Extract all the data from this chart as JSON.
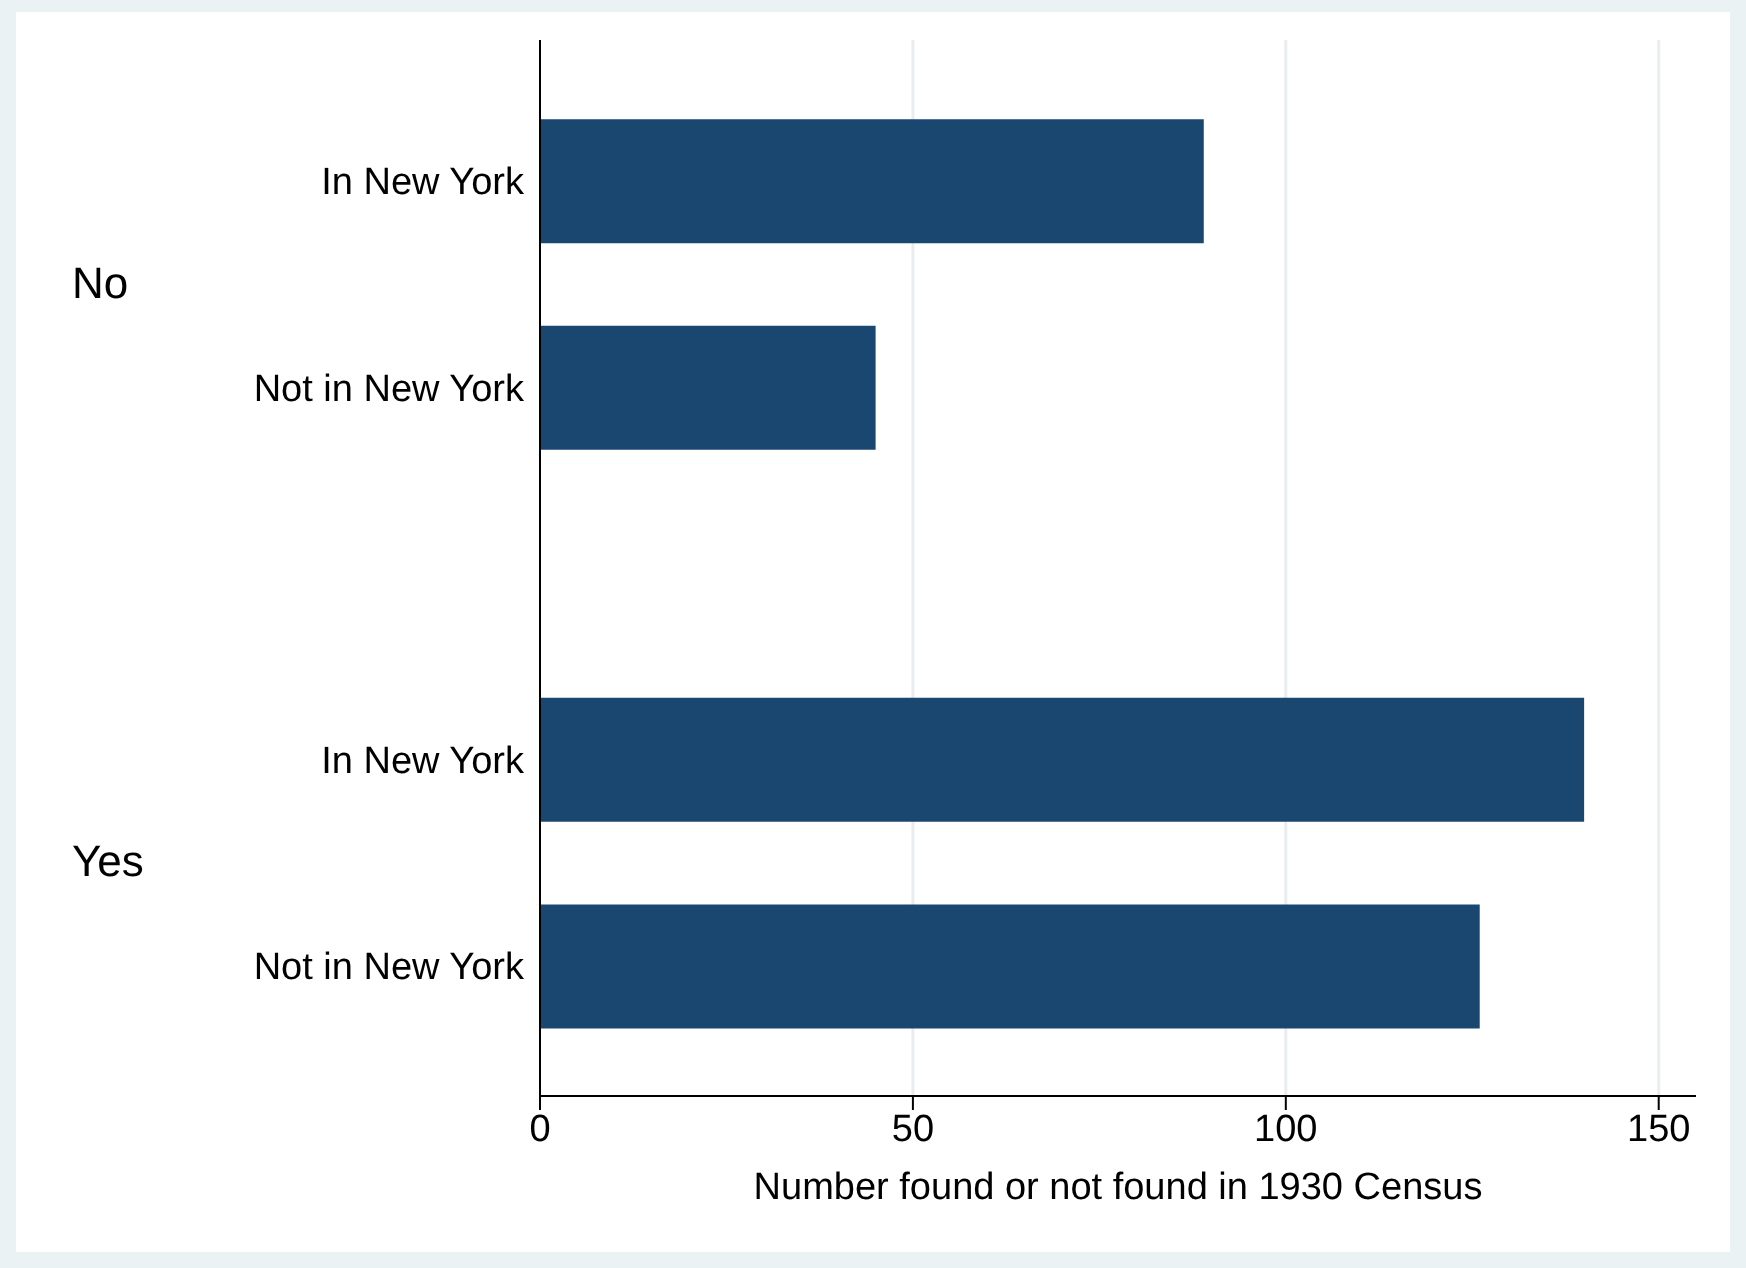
{
  "chart_data": {
    "type": "bar",
    "orientation": "horizontal",
    "xlabel": "Number found or not found in 1930 Census",
    "categories": [
      "In New York",
      "Not in New York",
      "In New York",
      "Not in New York"
    ],
    "values": [
      89,
      45,
      140,
      126
    ],
    "color": "#1a476f",
    "annotations": [
      "No",
      "Yes"
    ],
    "xlim": [
      0,
      155
    ],
    "xticks": [
      0,
      50,
      100,
      150
    ],
    "grid": "x"
  }
}
